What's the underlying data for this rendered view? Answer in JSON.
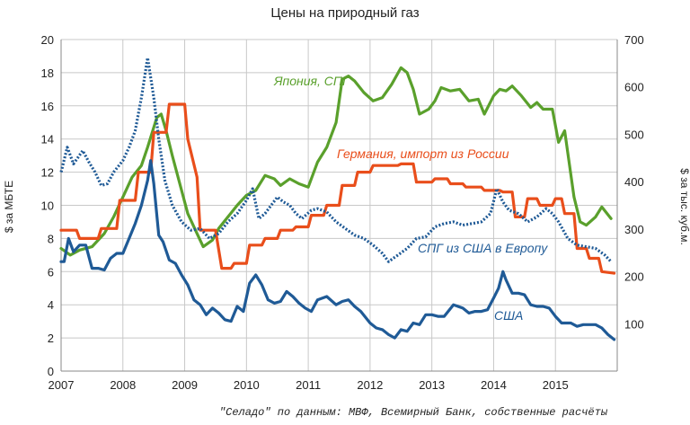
{
  "chart_data": {
    "type": "line",
    "title": "Цены на природный газ",
    "source_note": "\"Селадо\" по данным: МВФ, Всемирный Банк, собственные расчёты",
    "ylabel_left": "$ за МБТЕ",
    "ylabel_right": "$ за тыс. куб.м.",
    "ylim_left": [
      0,
      20
    ],
    "ylim_right": [
      0,
      700
    ],
    "xlim": [
      2007,
      2016
    ],
    "yticks_left": [
      "0",
      "2",
      "4",
      "6",
      "8",
      "10",
      "12",
      "14",
      "16",
      "18",
      "20"
    ],
    "yticks_right": [
      "100",
      "200",
      "300",
      "400",
      "500",
      "600",
      "700"
    ],
    "xticks": [
      "2007",
      "2008",
      "2009",
      "2010",
      "2011",
      "2012",
      "2013",
      "2014",
      "2015"
    ],
    "grid": true,
    "series": [
      {
        "name": "Япония, СПГ",
        "color": "#5aa02c",
        "style": "solid",
        "x": [
          2007.0,
          2007.15,
          2007.3,
          2007.5,
          2007.7,
          2007.85,
          2008.0,
          2008.15,
          2008.3,
          2008.4,
          2008.55,
          2008.62,
          2008.7,
          2008.8,
          2008.95,
          2009.05,
          2009.2,
          2009.3,
          2009.45,
          2009.55,
          2009.7,
          2009.85,
          2010.0,
          2010.15,
          2010.3,
          2010.45,
          2010.55,
          2010.7,
          2010.85,
          2011.0,
          2011.15,
          2011.3,
          2011.45,
          2011.55,
          2011.65,
          2011.75,
          2011.9,
          2012.05,
          2012.2,
          2012.35,
          2012.5,
          2012.6,
          2012.7,
          2012.8,
          2012.95,
          2013.05,
          2013.15,
          2013.3,
          2013.45,
          2013.6,
          2013.75,
          2013.85,
          2014.0,
          2014.1,
          2014.2,
          2014.3,
          2014.45,
          2014.6,
          2014.7,
          2014.8,
          2014.95,
          2015.05,
          2015.15,
          2015.3,
          2015.4,
          2015.5,
          2015.65,
          2015.75,
          2015.9
        ],
        "y": [
          7.4,
          7.0,
          7.3,
          7.5,
          8.3,
          9.3,
          10.5,
          11.7,
          12.4,
          13.5,
          15.3,
          15.5,
          14.5,
          13.0,
          10.9,
          9.5,
          8.3,
          7.5,
          7.9,
          8.6,
          9.3,
          10.0,
          10.6,
          10.9,
          11.8,
          11.6,
          11.2,
          11.6,
          11.3,
          11.1,
          12.6,
          13.5,
          15.0,
          17.6,
          17.8,
          17.5,
          16.8,
          16.3,
          16.5,
          17.3,
          18.3,
          18.0,
          17.0,
          15.5,
          15.8,
          16.3,
          17.1,
          16.9,
          17.0,
          16.3,
          16.4,
          15.5,
          16.6,
          17.0,
          16.9,
          17.2,
          16.6,
          15.9,
          16.2,
          15.8,
          15.8,
          13.8,
          14.5,
          10.5,
          9.0,
          8.8,
          9.3,
          9.9,
          9.2
        ]
      },
      {
        "name": "Германия, импорт из России",
        "color": "#e94e1b",
        "style": "solid",
        "x": [
          2007.0,
          2007.25,
          2007.3,
          2007.6,
          2007.65,
          2007.9,
          2007.95,
          2008.2,
          2008.25,
          2008.45,
          2008.5,
          2008.7,
          2008.75,
          2009.0,
          2009.05,
          2009.2,
          2009.25,
          2009.5,
          2009.6,
          2009.75,
          2009.8,
          2010.0,
          2010.05,
          2010.25,
          2010.3,
          2010.5,
          2010.55,
          2010.75,
          2010.8,
          2011.0,
          2011.05,
          2011.25,
          2011.3,
          2011.5,
          2011.55,
          2011.75,
          2011.8,
          2012.0,
          2012.05,
          2012.45,
          2012.5,
          2012.7,
          2012.75,
          2013.0,
          2013.05,
          2013.25,
          2013.3,
          2013.5,
          2013.55,
          2013.8,
          2013.85,
          2014.1,
          2014.15,
          2014.3,
          2014.35,
          2014.5,
          2014.55,
          2014.7,
          2014.75,
          2014.95,
          2015.0,
          2015.1,
          2015.15,
          2015.3,
          2015.35,
          2015.5,
          2015.55,
          2015.7,
          2015.75,
          2015.95
        ],
        "y": [
          8.5,
          8.5,
          8.0,
          8.0,
          8.6,
          8.6,
          10.3,
          10.3,
          12.0,
          12.0,
          14.4,
          14.4,
          16.1,
          16.1,
          14.0,
          11.7,
          8.5,
          8.5,
          6.2,
          6.2,
          6.5,
          6.5,
          7.6,
          7.6,
          8.0,
          8.0,
          8.5,
          8.5,
          8.7,
          8.7,
          9.4,
          9.4,
          10.0,
          10.0,
          11.2,
          11.2,
          12.0,
          12.0,
          12.4,
          12.4,
          12.5,
          12.5,
          11.4,
          11.4,
          11.6,
          11.6,
          11.3,
          11.3,
          11.1,
          11.1,
          10.9,
          10.9,
          10.8,
          10.8,
          9.3,
          9.3,
          10.4,
          10.4,
          10.0,
          10.0,
          10.4,
          10.4,
          9.5,
          9.5,
          7.4,
          7.4,
          6.8,
          6.8,
          6.0,
          5.9
        ]
      },
      {
        "name": "СПГ из США в Европу",
        "color": "#1f5a96",
        "style": "dotted",
        "x": [
          2007.0,
          2007.1,
          2007.2,
          2007.35,
          2007.45,
          2007.55,
          2007.65,
          2007.75,
          2007.85,
          2008.0,
          2008.1,
          2008.2,
          2008.3,
          2008.4,
          2008.5,
          2008.58,
          2008.68,
          2008.8,
          2008.95,
          2009.1,
          2009.25,
          2009.4,
          2009.55,
          2009.7,
          2009.85,
          2010.0,
          2010.1,
          2010.2,
          2010.3,
          2010.4,
          2010.5,
          2010.6,
          2010.7,
          2010.8,
          2010.9,
          2011.05,
          2011.15,
          2011.3,
          2011.45,
          2011.6,
          2011.75,
          2011.9,
          2012.05,
          2012.2,
          2012.3,
          2012.45,
          2012.6,
          2012.75,
          2012.9,
          2013.05,
          2013.2,
          2013.35,
          2013.5,
          2013.65,
          2013.8,
          2013.95,
          2014.05,
          2014.15,
          2014.25,
          2014.4,
          2014.55,
          2014.7,
          2014.85,
          2014.95,
          2015.05,
          2015.2,
          2015.35,
          2015.5,
          2015.65,
          2015.8,
          2015.9
        ],
        "y": [
          12.0,
          13.5,
          12.5,
          13.3,
          12.6,
          12.0,
          11.2,
          11.3,
          12.0,
          12.7,
          13.5,
          14.5,
          16.5,
          18.9,
          16.5,
          14.0,
          11.5,
          10.0,
          9.0,
          8.5,
          8.6,
          8.0,
          8.3,
          9.0,
          9.5,
          10.3,
          11.0,
          9.2,
          9.5,
          10.0,
          10.5,
          10.2,
          10.0,
          9.5,
          9.2,
          9.7,
          9.8,
          9.6,
          9.0,
          8.6,
          8.2,
          8.0,
          7.6,
          7.1,
          6.6,
          7.0,
          7.4,
          8.0,
          8.1,
          8.7,
          8.9,
          9.0,
          8.8,
          8.9,
          9.0,
          9.5,
          11.0,
          10.2,
          9.7,
          9.5,
          9.0,
          9.3,
          9.8,
          9.5,
          9.0,
          8.0,
          7.6,
          7.5,
          7.4,
          7.0,
          6.6
        ]
      },
      {
        "name": "США",
        "color": "#1f5a96",
        "style": "solid",
        "x": [
          2007.0,
          2007.05,
          2007.12,
          2007.2,
          2007.3,
          2007.4,
          2007.5,
          2007.6,
          2007.7,
          2007.8,
          2007.9,
          2008.0,
          2008.1,
          2008.2,
          2008.3,
          2008.4,
          2008.45,
          2008.5,
          2008.58,
          2008.65,
          2008.75,
          2008.85,
          2008.95,
          2009.05,
          2009.15,
          2009.25,
          2009.35,
          2009.45,
          2009.55,
          2009.65,
          2009.75,
          2009.85,
          2009.95,
          2010.05,
          2010.15,
          2010.25,
          2010.35,
          2010.45,
          2010.55,
          2010.65,
          2010.75,
          2010.85,
          2010.95,
          2011.05,
          2011.15,
          2011.3,
          2011.45,
          2011.55,
          2011.65,
          2011.75,
          2011.85,
          2012.0,
          2012.1,
          2012.2,
          2012.3,
          2012.4,
          2012.5,
          2012.6,
          2012.7,
          2012.8,
          2012.9,
          2013.0,
          2013.1,
          2013.2,
          2013.35,
          2013.5,
          2013.6,
          2013.7,
          2013.8,
          2013.9,
          2014.0,
          2014.08,
          2014.15,
          2014.2,
          2014.3,
          2014.4,
          2014.5,
          2014.6,
          2014.7,
          2014.8,
          2014.9,
          2015.0,
          2015.1,
          2015.25,
          2015.35,
          2015.45,
          2015.55,
          2015.65,
          2015.75,
          2015.85,
          2015.95
        ],
        "y": [
          6.6,
          6.6,
          8.0,
          7.2,
          7.6,
          7.6,
          6.2,
          6.2,
          6.1,
          6.8,
          7.1,
          7.1,
          8.0,
          8.9,
          10.0,
          11.5,
          12.7,
          11.3,
          8.2,
          7.8,
          6.7,
          6.5,
          5.8,
          5.2,
          4.3,
          4.0,
          3.4,
          3.8,
          3.5,
          3.1,
          3.0,
          3.9,
          3.6,
          5.3,
          5.8,
          5.2,
          4.3,
          4.1,
          4.2,
          4.8,
          4.5,
          4.1,
          3.8,
          3.6,
          4.3,
          4.5,
          4.0,
          4.2,
          4.3,
          3.9,
          3.6,
          2.9,
          2.6,
          2.5,
          2.2,
          2.0,
          2.5,
          2.4,
          2.9,
          2.8,
          3.4,
          3.4,
          3.3,
          3.3,
          4.0,
          3.8,
          3.5,
          3.6,
          3.6,
          3.7,
          4.4,
          5.0,
          6.0,
          5.5,
          4.7,
          4.7,
          4.6,
          4.0,
          3.9,
          3.9,
          3.8,
          3.3,
          2.9,
          2.9,
          2.7,
          2.8,
          2.8,
          2.8,
          2.6,
          2.2,
          1.9
        ]
      }
    ]
  }
}
